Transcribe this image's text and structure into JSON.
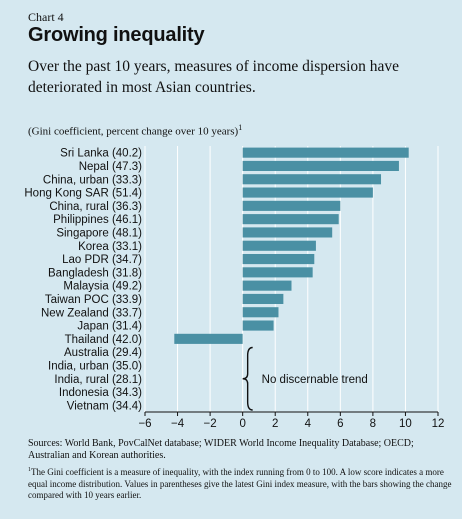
{
  "header": {
    "chart_number": "Chart 4",
    "title": "Growing inequality",
    "subtitle": "Over the past 10 years, measures of income dispersion have deteriorated in most Asian countries.",
    "unit_label": "(Gini coefficient, percent change over 10 years)",
    "unit_footnote_mark": "1"
  },
  "colors": {
    "background": "#d5e8f0",
    "bar": "#4a90a4",
    "grid": "#ffffff",
    "text": "#111111"
  },
  "chart_data": {
    "type": "bar",
    "orientation": "horizontal",
    "categories": [
      "Sri Lanka (40.2)",
      "Nepal (47.3)",
      "China, urban (33.3)",
      "Hong Kong SAR (51.4)",
      "China, rural (36.3)",
      "Philippines (46.1)",
      "Singapore (48.1)",
      "Korea (33.1)",
      "Lao PDR (34.7)",
      "Bangladesh (31.8)",
      "Malaysia (49.2)",
      "Taiwan POC (33.9)",
      "New Zealand (33.7)",
      "Japan (31.4)",
      "Thailand (42.0)",
      "Australia (29.4)",
      "India, urban (35.0)",
      "India, rural (28.1)",
      "Indonesia (34.3)",
      "Vietnam (34.4)"
    ],
    "values": [
      10.2,
      9.6,
      8.5,
      8.0,
      6.0,
      5.9,
      5.5,
      4.5,
      4.4,
      4.3,
      3.0,
      2.5,
      2.2,
      1.9,
      -4.2,
      null,
      null,
      null,
      null,
      null
    ],
    "xlim": [
      -6,
      12
    ],
    "xticks": [
      -6,
      -4,
      -2,
      0,
      2,
      4,
      6,
      8,
      10,
      12
    ],
    "xtick_labels": [
      "−6",
      "−4",
      "−2",
      "0",
      "2",
      "4",
      "6",
      "8",
      "10",
      "12"
    ],
    "grid": true,
    "annotation": "No discernable trend"
  },
  "footer": {
    "source": "Sources: World Bank, PovCalNet database; WIDER World Income Inequality Database; OECD; Australian and Korean authorities.",
    "note_mark": "1",
    "note": "The Gini coefficient is a measure of inequality, with the index running from 0 to 100. A low score indicates a more equal income distribution. Values in parentheses give the latest Gini index measure, with the bars showing the change compared with 10 years earlier."
  }
}
